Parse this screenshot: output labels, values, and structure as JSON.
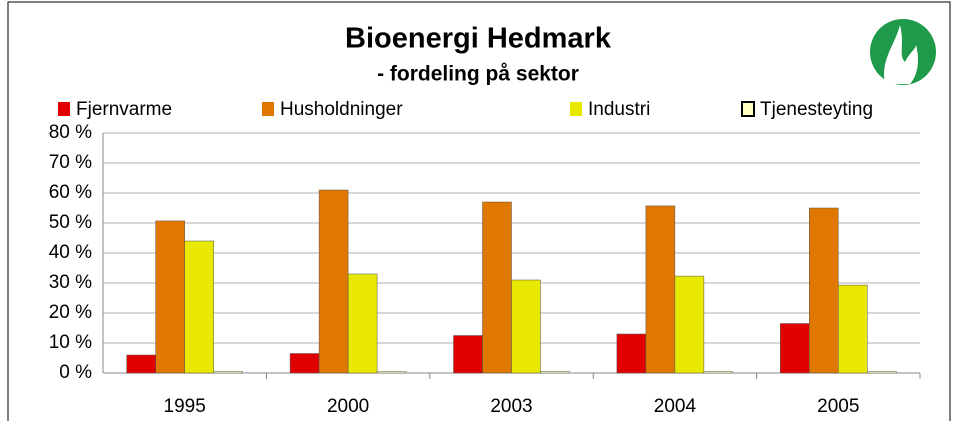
{
  "chart_data": {
    "type": "bar",
    "title": "Bioenergi Hedmark",
    "subtitle": "- fordeling på sektor",
    "categories": [
      "1995",
      "2000",
      "2003",
      "2004",
      "2005"
    ],
    "series": [
      {
        "name": "Fjernvarme",
        "color": "#e00000",
        "values": [
          6,
          6.5,
          12.5,
          13,
          16.5
        ]
      },
      {
        "name": "Husholdninger",
        "color": "#e07800",
        "values": [
          50.7,
          61,
          57,
          55.7,
          55
        ]
      },
      {
        "name": "Industri",
        "color": "#e8e800",
        "values": [
          44,
          33,
          31,
          32.3,
          29.3
        ]
      },
      {
        "name": "Tjenesteyting",
        "color": "#ffffc0",
        "values": [
          0.5,
          0.5,
          0.5,
          0.5,
          0.5
        ]
      }
    ],
    "ylim": [
      0,
      80
    ],
    "yticks": [
      {
        "value": 0,
        "label": "0 %"
      },
      {
        "value": 10,
        "label": "10 %"
      },
      {
        "value": 20,
        "label": "20 %"
      },
      {
        "value": 30,
        "label": "30 %"
      },
      {
        "value": 40,
        "label": "40 %"
      },
      {
        "value": 50,
        "label": "50 %"
      },
      {
        "value": 60,
        "label": "60 %"
      },
      {
        "value": 70,
        "label": "70 %"
      },
      {
        "value": 80,
        "label": "80 %"
      }
    ],
    "grid": true,
    "legend": "top"
  }
}
